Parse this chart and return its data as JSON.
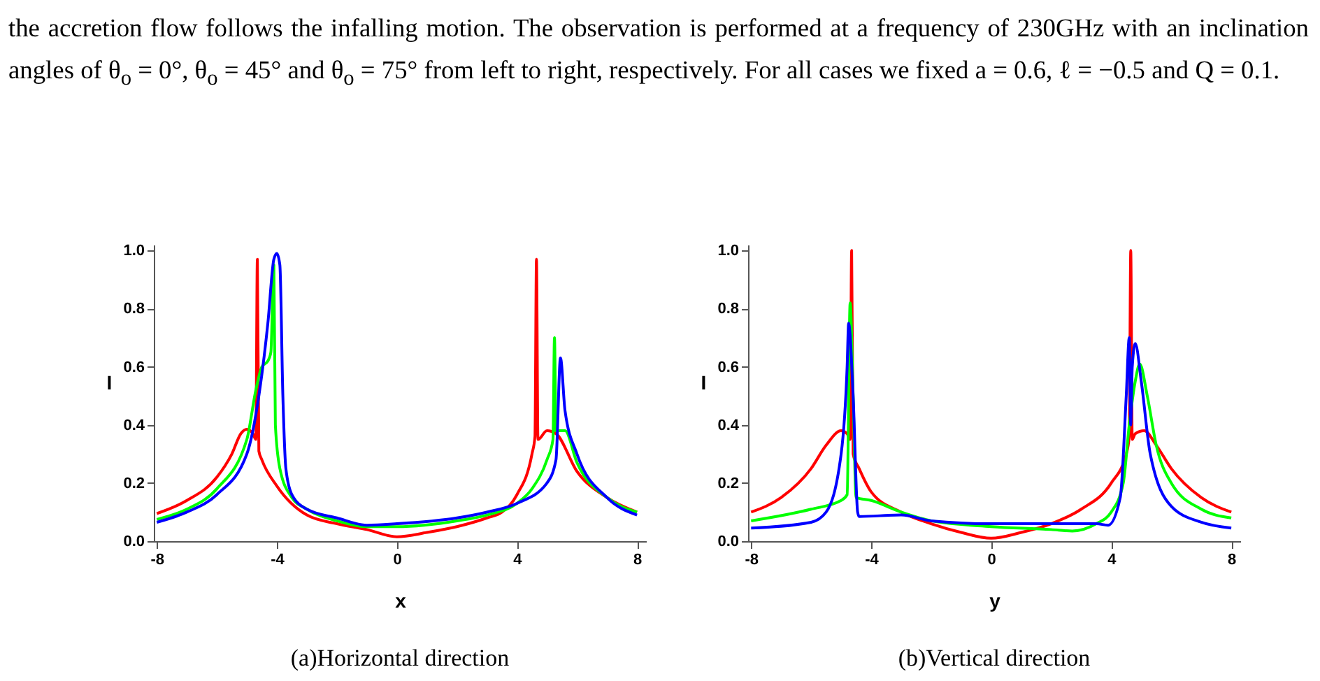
{
  "chart_data": [
    {
      "type": "line",
      "title": "(a)Horizontal direction",
      "xlabel": "x",
      "ylabel": "I",
      "annotations": [
        "the accretion flow follows the infalling motion. The observation is performed at a frequency of 230GHz with an inclination angles of θ$_{o}$ = 0°, θ$_{o}$ = 45° and θ$_{o}$ = 75° from left to right, respectively. For all cases we fixed a = 0.6, ℓ = −0.5 and Q = 0.1."
      ],
      "xlim": [
        -8.1,
        8.3
      ],
      "xticks": [
        -8,
        -4,
        0,
        4,
        8
      ],
      "ylim": [
        0,
        1.02
      ],
      "yticks": [
        {
          "value": 0,
          "label": "0.0"
        },
        {
          "value": 0.2,
          "label": "0.2"
        },
        {
          "value": 0.4,
          "label": "0.4"
        },
        {
          "value": 0.6,
          "label": "0.6"
        },
        {
          "value": 0.8,
          "label": "0.8"
        },
        {
          "value": 1,
          "label": "1.0"
        }
      ],
      "grid": false,
      "line_style": "solid",
      "series": [
        {
          "color": "#ff0000",
          "x": [
            -8,
            -7,
            -6,
            -5.5,
            -5.2,
            -5,
            -4.8,
            -4.7,
            -4.65,
            -4.6,
            -4.5,
            -4,
            -3,
            -2,
            -1,
            0,
            1,
            2,
            3,
            3.5,
            4,
            4.5,
            4.6,
            4.65,
            4.7,
            5,
            5.3,
            6,
            7,
            8
          ],
          "values": [
            0.095,
            0.14,
            0.22,
            0.3,
            0.37,
            0.385,
            0.37,
            0.35,
            0.97,
            0.31,
            0.28,
            0.19,
            0.09,
            0.06,
            0.04,
            0.015,
            0.03,
            0.05,
            0.08,
            0.1,
            0.16,
            0.3,
            0.36,
            0.97,
            0.35,
            0.38,
            0.37,
            0.24,
            0.15,
            0.1
          ]
        },
        {
          "color": "#00ff00",
          "x": [
            -8,
            -7,
            -6,
            -5,
            -4.7,
            -4.5,
            -4.3,
            -4.2,
            -4.1,
            -4.05,
            -3.9,
            -3.5,
            -3,
            -2,
            -1,
            0,
            2,
            3,
            4,
            4.5,
            5,
            5.2,
            5.25,
            5.3,
            5.6,
            6,
            7,
            8
          ],
          "values": [
            0.075,
            0.11,
            0.18,
            0.35,
            0.52,
            0.6,
            0.62,
            0.65,
            0.95,
            0.4,
            0.25,
            0.15,
            0.11,
            0.07,
            0.05,
            0.05,
            0.07,
            0.09,
            0.13,
            0.18,
            0.28,
            0.35,
            0.7,
            0.38,
            0.38,
            0.27,
            0.15,
            0.1
          ]
        },
        {
          "color": "#0000ff",
          "x": [
            -8,
            -7,
            -6,
            -5,
            -4.6,
            -4.3,
            -4.1,
            -4,
            -3.9,
            -3.8,
            -3.7,
            -3.5,
            -3,
            -2,
            -1,
            0,
            2,
            3,
            4,
            5,
            5.3,
            5.45,
            5.6,
            6,
            7,
            8
          ],
          "values": [
            0.065,
            0.1,
            0.16,
            0.3,
            0.5,
            0.75,
            0.97,
            0.99,
            0.95,
            0.5,
            0.25,
            0.16,
            0.11,
            0.08,
            0.055,
            0.06,
            0.08,
            0.1,
            0.13,
            0.2,
            0.28,
            0.63,
            0.45,
            0.3,
            0.15,
            0.09
          ]
        }
      ]
    },
    {
      "type": "line",
      "title": "(b)Vertical direction",
      "xlabel": "y",
      "ylabel": "I",
      "xlim": [
        -8.1,
        8.3
      ],
      "xticks": [
        -8,
        -4,
        0,
        4,
        8
      ],
      "ylim": [
        0,
        1.02
      ],
      "yticks": [
        {
          "value": 0,
          "label": "0.0"
        },
        {
          "value": 0.2,
          "label": "0.2"
        },
        {
          "value": 0.4,
          "label": "0.4"
        },
        {
          "value": 0.6,
          "label": "0.6"
        },
        {
          "value": 0.8,
          "label": "0.8"
        },
        {
          "value": 1,
          "label": "1.0"
        }
      ],
      "grid": false,
      "line_style": "solid",
      "series": [
        {
          "color": "#ff0000",
          "x": [
            -8,
            -7,
            -6,
            -5.5,
            -5,
            -4.8,
            -4.7,
            -4.65,
            -4.6,
            -4.4,
            -4,
            -3,
            -2,
            -1,
            0,
            1,
            2,
            3,
            4,
            4.5,
            4.6,
            4.65,
            4.7,
            4.8,
            5.1,
            5.5,
            6,
            7,
            8
          ],
          "values": [
            0.1,
            0.15,
            0.25,
            0.33,
            0.38,
            0.37,
            0.35,
            1,
            0.3,
            0.25,
            0.17,
            0.1,
            0.06,
            0.03,
            0.01,
            0.03,
            0.06,
            0.11,
            0.2,
            0.3,
            0.36,
            1,
            0.35,
            0.37,
            0.38,
            0.33,
            0.25,
            0.15,
            0.1
          ]
        },
        {
          "color": "#00ff00",
          "x": [
            -8,
            -6,
            -5,
            -4.8,
            -4.7,
            -4.6,
            -4.5,
            -4,
            -3,
            -2,
            0,
            2,
            2.7,
            3.5,
            4,
            4.4,
            4.6,
            4.8,
            4.95,
            5.2,
            5.5,
            6,
            7,
            8
          ],
          "values": [
            0.07,
            0.11,
            0.14,
            0.16,
            0.82,
            0.5,
            0.15,
            0.14,
            0.1,
            0.07,
            0.05,
            0.04,
            0.035,
            0.06,
            0.1,
            0.2,
            0.4,
            0.55,
            0.61,
            0.5,
            0.33,
            0.2,
            0.11,
            0.08
          ]
        },
        {
          "color": "#0000ff",
          "x": [
            -8,
            -6,
            -5.5,
            -5,
            -4.8,
            -4.75,
            -4.6,
            -4.45,
            -4.4,
            -3,
            -2,
            0,
            2,
            3.5,
            3.9,
            4.3,
            4.5,
            4.6,
            4.65,
            4.7,
            4.8,
            5,
            5.3,
            6,
            7,
            8
          ],
          "values": [
            0.045,
            0.065,
            0.1,
            0.3,
            0.6,
            0.75,
            0.5,
            0.1,
            0.085,
            0.09,
            0.07,
            0.06,
            0.06,
            0.06,
            0.055,
            0.15,
            0.5,
            0.7,
            0.4,
            0.6,
            0.68,
            0.55,
            0.3,
            0.12,
            0.065,
            0.045
          ]
        }
      ]
    }
  ]
}
